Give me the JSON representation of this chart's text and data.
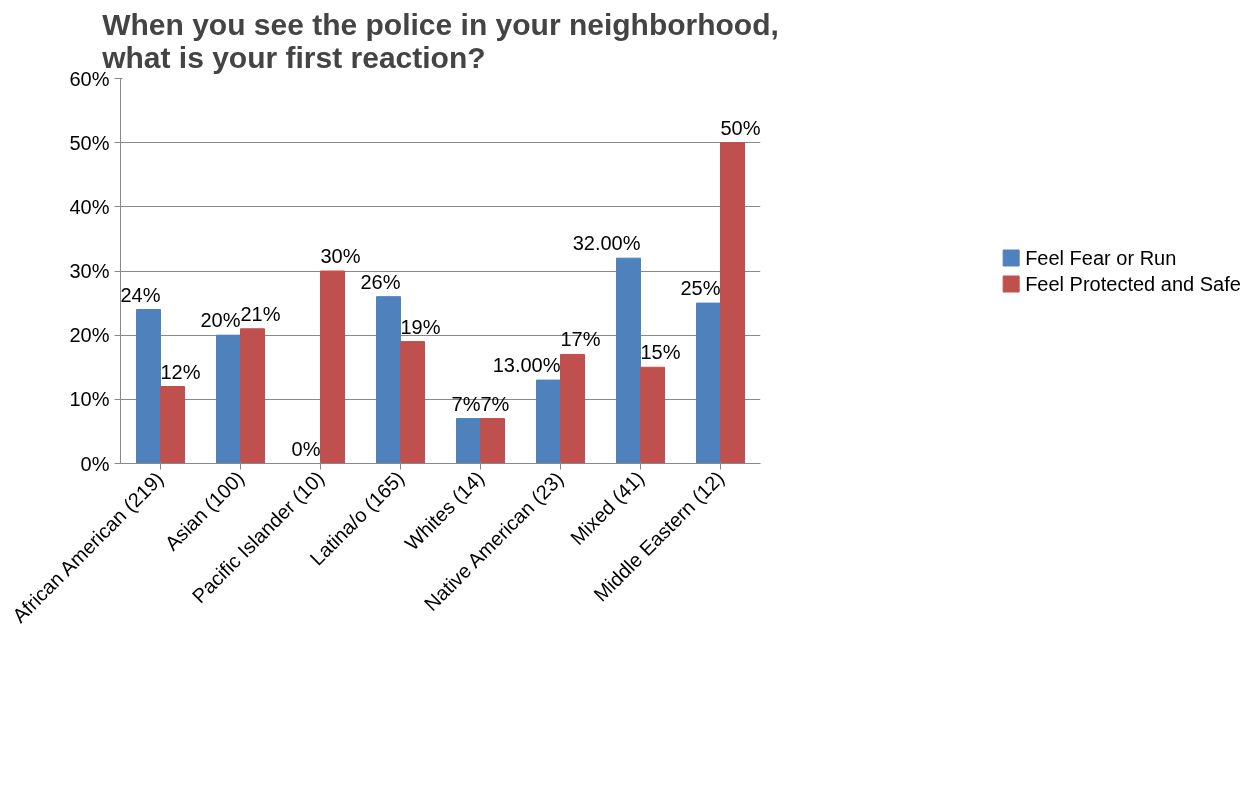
{
  "chart_data": {
    "type": "bar",
    "title": "When you see the police in your neighborhood,\nwhat is your first reaction?",
    "categories": [
      "African American (219)",
      "Asian (100)",
      "Pacific Islander (10)",
      "Latina/o (165)",
      "Whites (14)",
      "Native American (23)",
      "Mixed (41)",
      "Middle Eastern (12)"
    ],
    "series": [
      {
        "name": "Feel Fear or Run",
        "color": "#4f81bd",
        "values": [
          24,
          20,
          0,
          26,
          7,
          13,
          32,
          25
        ],
        "value_labels": [
          "24%",
          "20%",
          "0%",
          "26%",
          "7%",
          "13.00%",
          "32.00%",
          "25%"
        ]
      },
      {
        "name": "Feel Protected and Safe",
        "color": "#c0504d",
        "values": [
          12,
          21,
          30,
          19,
          7,
          17,
          15,
          50
        ],
        "value_labels": [
          "12%",
          "21%",
          "30%",
          "19%",
          "7%",
          "17%",
          "15%",
          "50%"
        ]
      }
    ],
    "ylim": [
      0,
      60
    ],
    "yticks": [
      {
        "value": 0,
        "label": "0%"
      },
      {
        "value": 10,
        "label": "10%"
      },
      {
        "value": 20,
        "label": "20%"
      },
      {
        "value": 30,
        "label": "30%"
      },
      {
        "value": 40,
        "label": "40%"
      },
      {
        "value": 50,
        "label": "50%"
      },
      {
        "value": 60,
        "label": "60%"
      }
    ],
    "grid": "y",
    "legend": "right"
  }
}
